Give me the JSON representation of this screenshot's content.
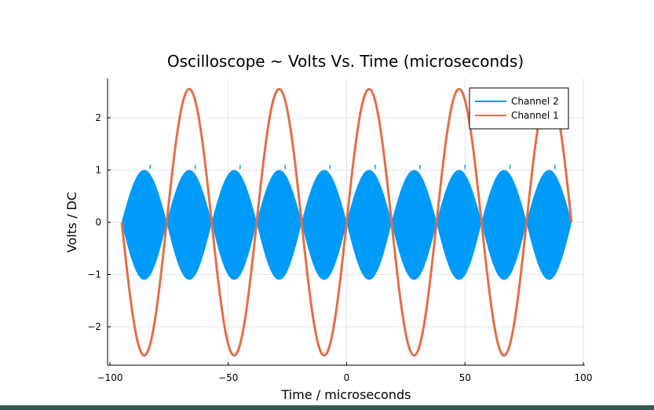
{
  "chart_data": {
    "type": "line",
    "title": "Oscilloscope ~ Volts Vs. Time (microseconds)",
    "xlabel": "Time / microseconds",
    "ylabel": "Volts / DC",
    "xlim": [
      -100,
      100
    ],
    "ylim": [
      -2.8,
      2.8
    ],
    "xticks": [
      -100,
      -50,
      0,
      50,
      100
    ],
    "yticks": [
      -2,
      -1,
      0,
      1,
      2
    ],
    "xtick_labels": [
      "−100",
      "−50",
      "0",
      "50",
      "100"
    ],
    "ytick_labels": [
      "−2",
      "−1",
      "0",
      "1",
      "2"
    ],
    "grid": true,
    "legend_position": "top-right",
    "series": [
      {
        "name": "Channel 2",
        "color": "#009af9",
        "kind": "amplitude-modulated carrier",
        "x_start": -95,
        "x_end": 95,
        "envelope_peak_times": [
          -85.5,
          -66.5,
          -47.5,
          -28.5,
          -9.5,
          9.5,
          28.5,
          47.5,
          66.5,
          85.5
        ],
        "envelope_max": 1.0,
        "envelope_min": -1.1
      },
      {
        "name": "Channel 1",
        "color": "#e26f46",
        "kind": "sine",
        "x_start": -95,
        "x_end": 95,
        "amplitude": 2.55,
        "period": 38,
        "peak_times": [
          -66.5,
          -28.5,
          9.5,
          47.5,
          85.5
        ],
        "trough_times": [
          -85.5,
          -47.5,
          -9.5,
          28.5,
          66.5
        ]
      }
    ]
  }
}
